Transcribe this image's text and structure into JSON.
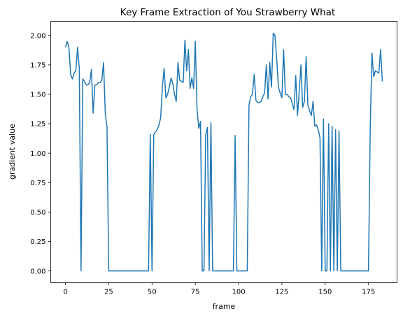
{
  "chart_data": {
    "type": "line",
    "title": "Key Frame Extraction of You Strawberry What",
    "xlabel": "frame",
    "ylabel": "gradient value",
    "xlim": [
      -8.5,
      191.5
    ],
    "ylim": [
      -0.1,
      2.12
    ],
    "xticks": [
      0,
      25,
      50,
      75,
      100,
      125,
      150,
      175
    ],
    "yticks": [
      0.0,
      0.25,
      0.5,
      0.75,
      1.0,
      1.25,
      1.5,
      1.75,
      2.0
    ],
    "xtick_labels": [
      "0",
      "25",
      "50",
      "75",
      "100",
      "125",
      "150",
      "175"
    ],
    "ytick_labels": [
      "0.00",
      "0.25",
      "0.50",
      "0.75",
      "1.00",
      "1.25",
      "1.50",
      "1.75",
      "2.00"
    ],
    "grid": false,
    "line_color": "#1f77b4",
    "series": [
      {
        "values": [
          1.9,
          1.95,
          1.9,
          1.67,
          1.63,
          1.68,
          1.7,
          1.9,
          1.72,
          0.0,
          1.63,
          1.61,
          1.58,
          1.58,
          1.6,
          1.71,
          1.34,
          1.58,
          1.58,
          1.6,
          1.6,
          1.62,
          1.77,
          1.34,
          1.22,
          0.0,
          0.0,
          0.0,
          0.0,
          0.0,
          0.0,
          0.0,
          0.0,
          0.0,
          0.0,
          0.0,
          0.0,
          0.0,
          0.0,
          0.0,
          0.0,
          0.0,
          0.0,
          0.0,
          0.0,
          0.0,
          0.0,
          0.0,
          0.0,
          1.16,
          0.0,
          1.16,
          1.18,
          1.2,
          1.24,
          1.3,
          1.57,
          1.72,
          1.47,
          1.5,
          1.56,
          1.64,
          1.59,
          1.5,
          1.44,
          1.77,
          1.62,
          1.61,
          1.6,
          1.96,
          1.7,
          1.88,
          1.55,
          1.64,
          1.55,
          1.95,
          1.37,
          1.21,
          1.27,
          0.0,
          0.0,
          1.16,
          1.22,
          0.0,
          1.26,
          0.0,
          0.0,
          0.0,
          0.0,
          0.0,
          0.0,
          0.0,
          0.0,
          0.0,
          0.0,
          0.0,
          0.0,
          0.0,
          1.15,
          0.0,
          0.0,
          0.0,
          0.0,
          0.0,
          0.0,
          0.0,
          1.41,
          1.48,
          1.5,
          1.67,
          1.45,
          1.43,
          1.43,
          1.44,
          1.48,
          1.51,
          1.75,
          1.46,
          1.77,
          1.56,
          2.02,
          2.0,
          1.8,
          1.56,
          1.51,
          1.47,
          1.88,
          1.5,
          1.5,
          1.48,
          1.47,
          1.42,
          1.37,
          1.66,
          1.32,
          1.52,
          1.75,
          1.39,
          1.44,
          1.82,
          1.41,
          1.36,
          1.32,
          1.44,
          1.23,
          1.24,
          1.2,
          1.13,
          0.0,
          1.29,
          0.0,
          0.0,
          1.25,
          0.0,
          1.23,
          0.0,
          1.2,
          0.0,
          1.19,
          0.0,
          0.0,
          0.0,
          0.0,
          0.0,
          0.0,
          0.0,
          0.0,
          0.0,
          0.0,
          0.0,
          0.0,
          0.0,
          0.0,
          0.0,
          0.0,
          0.0,
          1.2,
          1.85,
          1.65,
          1.7,
          1.69,
          1.68,
          1.88,
          1.61
        ]
      }
    ]
  }
}
